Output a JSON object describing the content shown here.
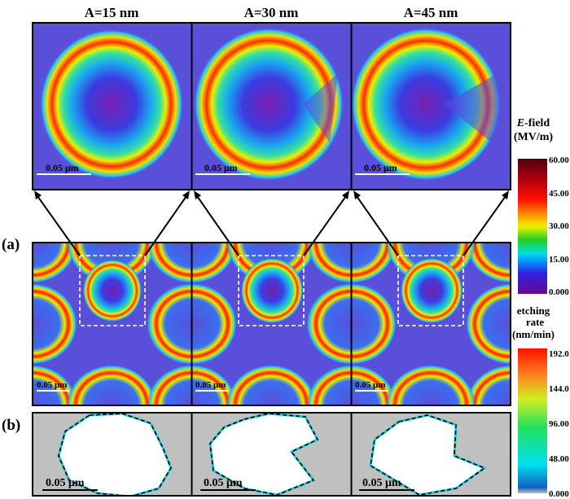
{
  "columns": [
    {
      "label": "A=15 nm",
      "scale_bar": "0.05 μm"
    },
    {
      "label": "A=30 nm",
      "scale_bar": "0.05 μm"
    },
    {
      "label": "A=45 nm",
      "scale_bar": "0.05 μm"
    }
  ],
  "row_labels": {
    "a": "(a)",
    "b": "(b)"
  },
  "efield_colorbar": {
    "title_italic": "E",
    "title_rest": "-field",
    "unit": "(MV/m)",
    "ticks": [
      "60.00",
      "45.00",
      "30.00",
      "15.00",
      "0.000"
    ]
  },
  "etch_colorbar": {
    "title1": "etching",
    "title2": "rate",
    "unit": "(nm/min)",
    "ticks": [
      "192.0",
      "144.0",
      "96.00",
      "48.00",
      "0.000"
    ]
  },
  "colors": {
    "background_b": "#c0c0c0",
    "field_bg": "#5a4fd8"
  }
}
